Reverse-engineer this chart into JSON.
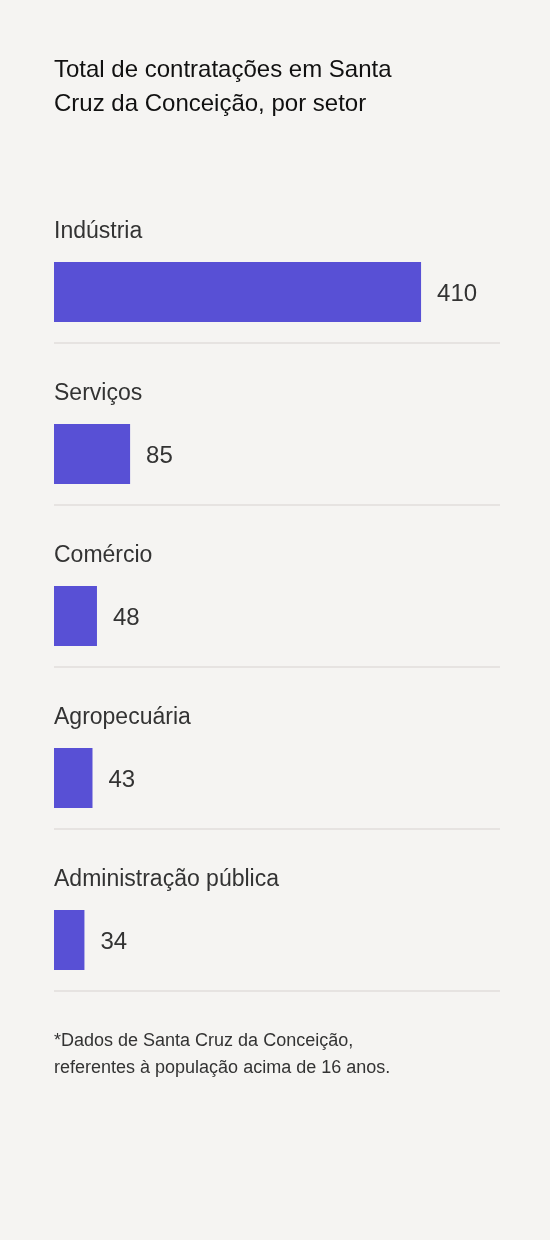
{
  "chart_data": {
    "type": "bar",
    "orientation": "horizontal",
    "title": "Total de contratações em Santa Cruz da Conceição, por setor",
    "categories": [
      "Indústria",
      "Serviços",
      "Comércio",
      "Agropecuária",
      "Administração pública"
    ],
    "values": [
      410,
      85,
      48,
      43,
      34
    ],
    "color": "#5850d5",
    "data_labels": true,
    "grid": "y",
    "annotations": [
      "*Dados de Santa Cruz da Conceição, referentes à população acima de 16 anos."
    ]
  }
}
